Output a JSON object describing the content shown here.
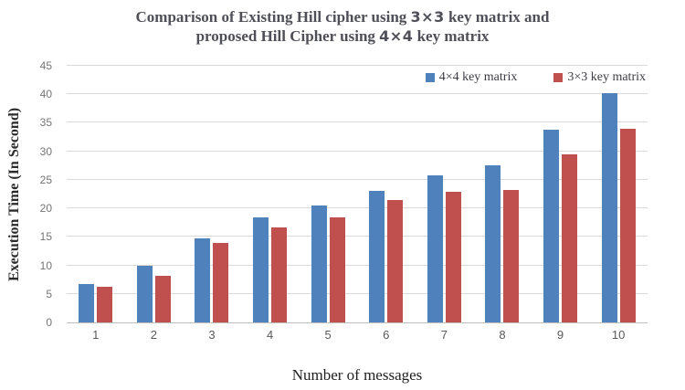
{
  "figure": {
    "title_line1": {
      "pre": "Comparison of Existing Hill cipher using  ",
      "matrix": "3×3",
      "post": " key matrix and"
    },
    "title_line2": {
      "pre": "proposed Hill Cipher using ",
      "matrix": "4×4",
      "post": " key matrix"
    }
  },
  "chart_data": {
    "type": "bar",
    "title": "Comparison of Existing Hill cipher using 3×3 key matrix and proposed Hill Cipher using 4×4 key matrix",
    "xlabel": "Number of messages",
    "ylabel": "Execution Time (In Second)",
    "ylim": [
      0,
      45
    ],
    "yticks": [
      0,
      5,
      10,
      15,
      20,
      25,
      30,
      35,
      40,
      45
    ],
    "grid": true,
    "legend_position": "top-right inside plot",
    "categories": [
      "1",
      "2",
      "3",
      "4",
      "5",
      "6",
      "7",
      "8",
      "9",
      "10"
    ],
    "series": [
      {
        "key": "4x4",
        "name": "4×4 key matrix",
        "color": "#4F81BD",
        "values": [
          6.8,
          9.9,
          14.7,
          18.4,
          20.5,
          23.0,
          25.8,
          27.6,
          33.8,
          40.2
        ]
      },
      {
        "key": "3x3",
        "name": "3×3 key matrix",
        "color": "#C0504D",
        "values": [
          6.2,
          8.1,
          14.0,
          16.7,
          18.4,
          21.5,
          22.9,
          23.3,
          29.4,
          33.9
        ]
      }
    ]
  },
  "colors": {
    "gridline": "#D9D9D9",
    "axis_line": "#BFBFBF",
    "title_text": "#4F4F57",
    "ytick_text": "#757575",
    "xtick_text": "#595959",
    "legend_text": "#3C3C44",
    "axis_title_text": "#2B2B2B",
    "xaxis_title_text": "#1F1F1F"
  }
}
